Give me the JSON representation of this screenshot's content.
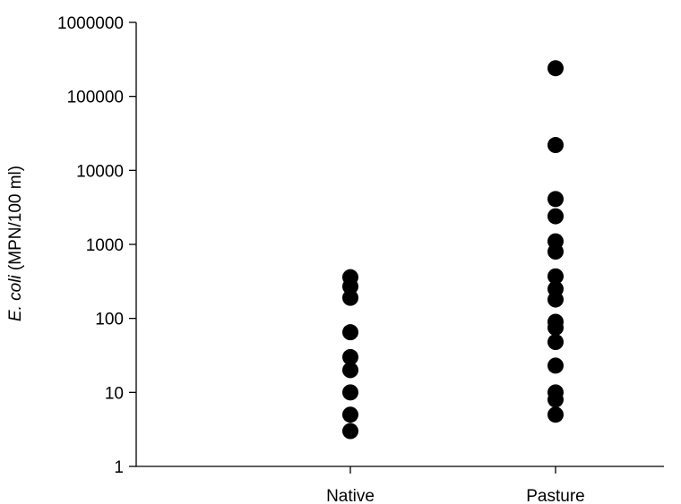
{
  "chart_data": {
    "type": "scatter",
    "y_scale": "log",
    "ylim": [
      1,
      1000000
    ],
    "y_ticks": [
      1,
      10,
      100,
      1000,
      10000,
      100000,
      1000000
    ],
    "y_tick_labels": [
      "1",
      "10",
      "100",
      "1000",
      "10000",
      "100000",
      "1000000"
    ],
    "ylabel_italic": "E. coli",
    "ylabel_rest": " (MPN/100 ml)",
    "categories": [
      "Native",
      "Pasture"
    ],
    "series": [
      {
        "category": "Native",
        "values": [
          3,
          5,
          10,
          20,
          30,
          65,
          190,
          270,
          360
        ]
      },
      {
        "category": "Pasture",
        "values": [
          5,
          8,
          10,
          23,
          48,
          75,
          90,
          180,
          250,
          370,
          800,
          1100,
          2400,
          4100,
          22000,
          240000
        ]
      }
    ],
    "marker_color": "#000000",
    "grid": false
  }
}
